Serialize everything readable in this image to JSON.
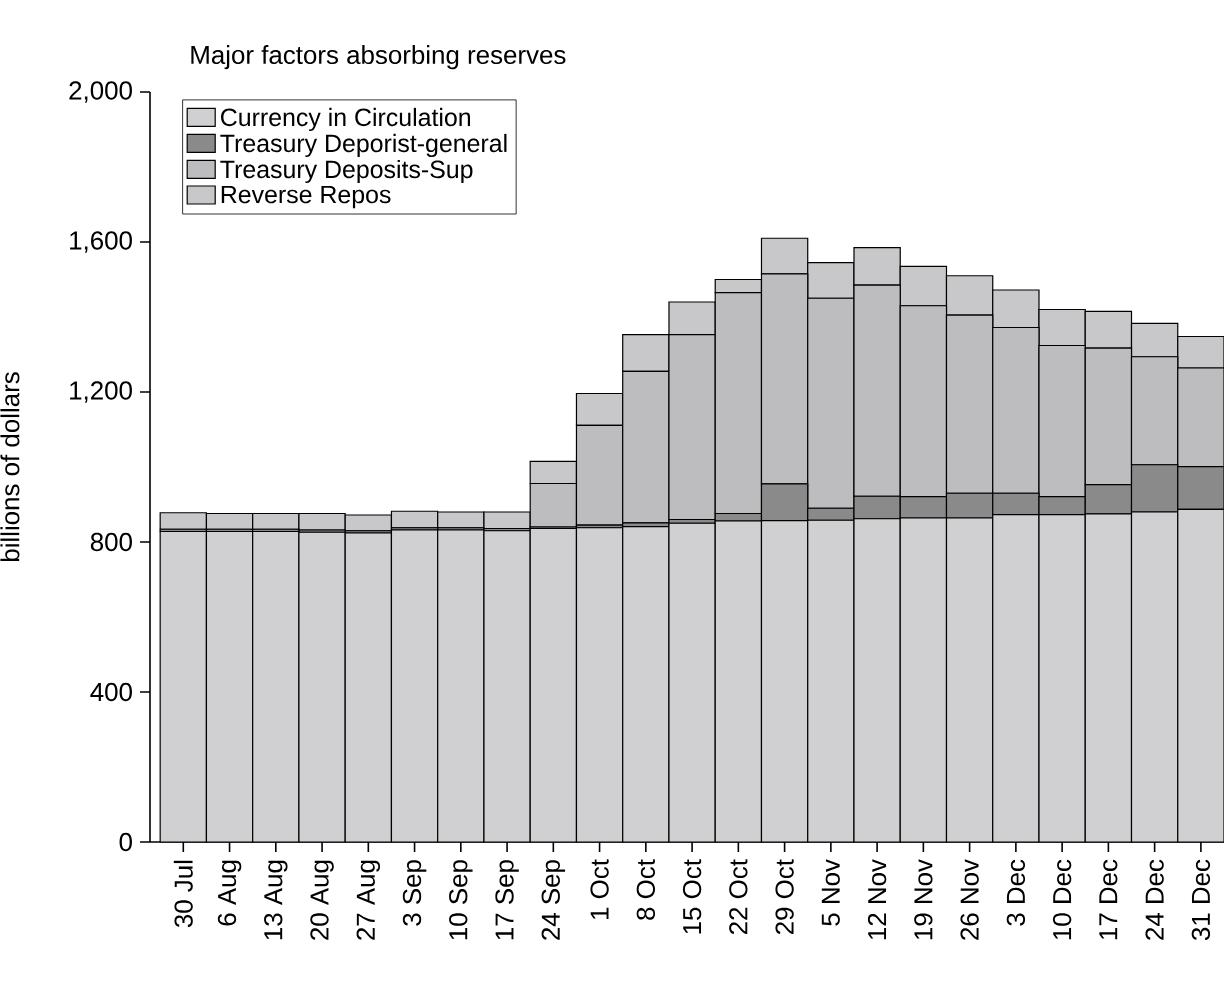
{
  "chart_data": {
    "type": "bar",
    "stacked": true,
    "title": "Major factors absorbing reserves",
    "ylabel": "billions of dollars",
    "categories": [
      "30 Jul",
      "6 Aug",
      "13 Aug",
      "20 Aug",
      "27 Aug",
      "3 Sep",
      "10 Sep",
      "17 Sep",
      "24 Sep",
      "1 Oct",
      "8 Oct",
      "15 Oct",
      "22 Oct",
      "29 Oct",
      "5 Nov",
      "12 Nov",
      "19 Nov",
      "26 Nov",
      "3 Dec",
      "10 Dec",
      "17 Dec",
      "24 Dec",
      "31 Dec"
    ],
    "series": [
      {
        "name": "Currency in Circulation",
        "color": "#d0d0d2",
        "values": [
          828,
          828,
          828,
          826,
          824,
          832,
          832,
          830,
          836,
          838,
          841,
          850,
          856,
          857,
          858,
          862,
          864,
          864,
          873,
          873,
          875,
          880,
          887
        ]
      },
      {
        "name": "Treasury Deporist-general",
        "color": "#8a8a8a",
        "values": [
          6,
          6,
          6,
          6,
          6,
          6,
          6,
          6,
          4,
          7,
          10,
          10,
          20,
          98,
          32,
          60,
          57,
          66,
          57,
          48,
          78,
          126,
          114
        ]
      },
      {
        "name": "Treasury Deposits-Sup",
        "color": "#bdbdbf",
        "values": [
          0,
          0,
          0,
          0,
          0,
          0,
          0,
          0,
          116,
          266,
          404,
          493,
          589,
          560,
          560,
          563,
          509,
          475,
          442,
          403,
          364,
          288,
          263
        ]
      },
      {
        "name": "Reverse Repos",
        "color": "#c8c8ca",
        "values": [
          44,
          42,
          42,
          44,
          42,
          44,
          42,
          44,
          59,
          85,
          98,
          87,
          35,
          95,
          95,
          100,
          105,
          105,
          100,
          96,
          98,
          89,
          84
        ]
      }
    ],
    "ylim": [
      0,
      2000
    ],
    "yticks": [
      {
        "value": 0,
        "label": "0"
      },
      {
        "value": 400,
        "label": "400"
      },
      {
        "value": 800,
        "label": "800"
      },
      {
        "value": 1200,
        "label": "1,200"
      },
      {
        "value": 1600,
        "label": "1,600"
      },
      {
        "value": 2000,
        "label": "2,000"
      }
    ],
    "grid": false,
    "legend": "top left"
  }
}
